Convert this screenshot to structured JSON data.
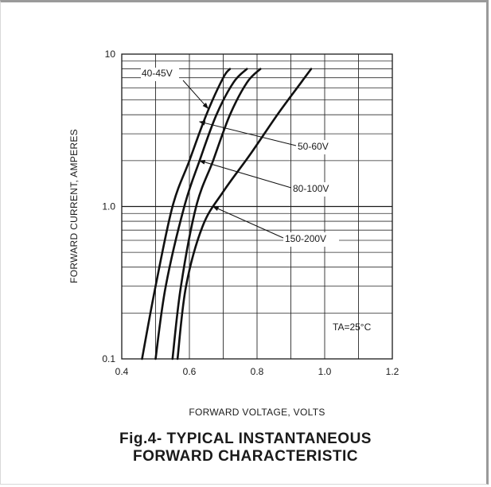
{
  "chart_data": {
    "type": "line",
    "title": "",
    "xlabel": "FORWARD VOLTAGE, VOLTS",
    "ylabel": "FORWARD CURRENT, AMPERES",
    "xlim": [
      0.4,
      1.2
    ],
    "ylim": [
      0.1,
      10
    ],
    "yscale": "log",
    "grid": true,
    "x_ticks": [
      "0.4",
      "0.6",
      "0.8",
      "1.0",
      "1.2"
    ],
    "y_ticks": [
      "0.1",
      "1.0",
      "10"
    ],
    "condition_label": "TA=25°C",
    "series": [
      {
        "name": "40-45V",
        "points": [
          [
            0.46,
            0.1
          ],
          [
            0.5,
            0.3
          ],
          [
            0.55,
            1.0
          ],
          [
            0.6,
            2.0
          ],
          [
            0.65,
            4.0
          ],
          [
            0.7,
            7.0
          ],
          [
            0.72,
            8.0
          ]
        ]
      },
      {
        "name": "50-60V",
        "points": [
          [
            0.5,
            0.1
          ],
          [
            0.53,
            0.3
          ],
          [
            0.585,
            1.0
          ],
          [
            0.63,
            2.0
          ],
          [
            0.68,
            4.0
          ],
          [
            0.73,
            6.5
          ],
          [
            0.77,
            8.0
          ]
        ]
      },
      {
        "name": "80-100V",
        "points": [
          [
            0.55,
            0.1
          ],
          [
            0.575,
            0.3
          ],
          [
            0.62,
            1.0
          ],
          [
            0.67,
            2.0
          ],
          [
            0.72,
            4.0
          ],
          [
            0.77,
            6.5
          ],
          [
            0.81,
            8.0
          ]
        ]
      },
      {
        "name": "150-200V",
        "points": [
          [
            0.565,
            0.1
          ],
          [
            0.59,
            0.3
          ],
          [
            0.64,
            0.75
          ],
          [
            0.7,
            1.25
          ],
          [
            0.78,
            2.2
          ],
          [
            0.86,
            4.0
          ],
          [
            0.93,
            6.5
          ],
          [
            0.96,
            8.0
          ]
        ]
      }
    ],
    "annotations": [
      {
        "text": "40-45V",
        "arrow_to_series": "40-45V"
      },
      {
        "text": "50-60V",
        "arrow_to_series": "50-60V"
      },
      {
        "text": "80-100V",
        "arrow_to_series": "80-100V"
      },
      {
        "text": "150-200V",
        "arrow_to_series": "150-200V"
      }
    ]
  },
  "caption": {
    "line1": "Fig.4- TYPICAL INSTANTANEOUS",
    "line2": "FORWARD CHARACTERISTIC"
  }
}
